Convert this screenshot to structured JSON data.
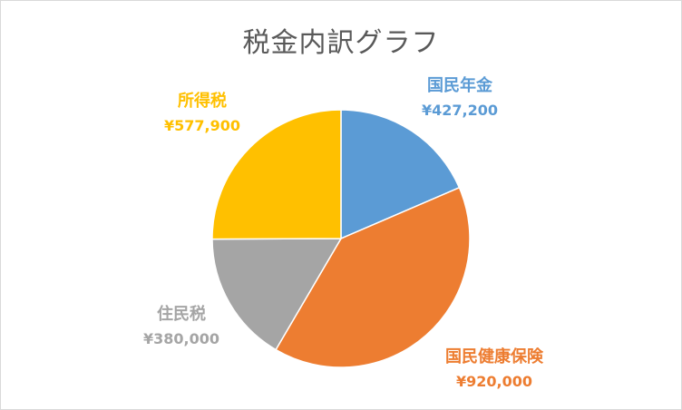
{
  "chart_data": {
    "type": "pie",
    "title": "税金内訳グラフ",
    "slices": [
      {
        "label": "国民年金",
        "value": 427200,
        "display": "¥427,200",
        "color": "#5B9BD5"
      },
      {
        "label": "国民健康保険",
        "value": 920000,
        "display": "¥920,000",
        "color": "#ED7D31"
      },
      {
        "label": "住民税",
        "value": 380000,
        "display": "¥380,000",
        "color": "#A5A5A5"
      },
      {
        "label": "所得税",
        "value": 577900,
        "display": "¥577,900",
        "color": "#FFC000"
      }
    ],
    "start_angle": "12 o'clock",
    "direction": "clockwise",
    "legend": "none"
  }
}
